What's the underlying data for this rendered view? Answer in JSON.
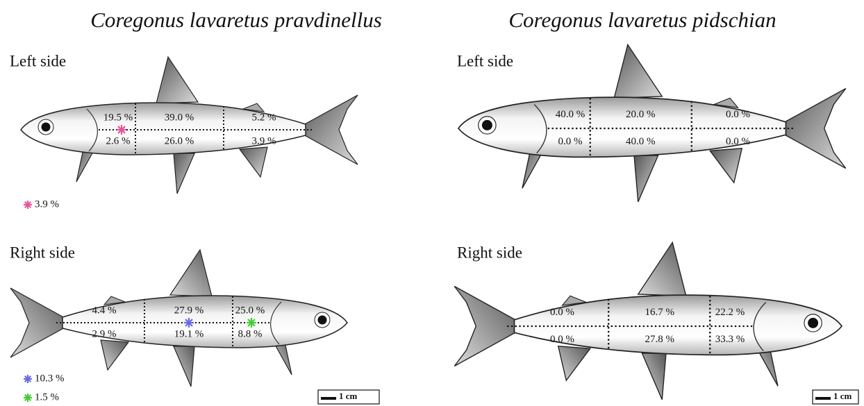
{
  "panels": [
    {
      "species": "Coregonus lavaretus pravdinellus",
      "sides": [
        {
          "label": "Left side",
          "upper": [
            "19.5 %",
            "39.0 %",
            "5.2 %"
          ],
          "lower": [
            "2.6 %",
            "26.0 %",
            "3.9 %"
          ],
          "markers": [
            {
              "color": "#e8559a",
              "label": "3.9 %"
            }
          ]
        },
        {
          "label": "Right side",
          "upper": [
            "4.4 %",
            "27.9 %",
            "25.0 %"
          ],
          "lower": [
            "2.9 %",
            "19.1 %",
            "8.8 %"
          ],
          "markers": [
            {
              "color": "#6a6ae8",
              "label": "10.3 %"
            },
            {
              "color": "#44cc33",
              "label": "1.5 %"
            }
          ]
        }
      ],
      "scale": "1 cm"
    },
    {
      "species": "Coregonus lavaretus pidschian",
      "sides": [
        {
          "label": "Left side",
          "upper": [
            "40.0 %",
            "20.0 %",
            "0.0 %"
          ],
          "lower": [
            "0.0 %",
            "40.0 %",
            "0.0 %"
          ],
          "markers": []
        },
        {
          "label": "Right side",
          "upper": [
            "0.0 %",
            "16.7 %",
            "22.2 %"
          ],
          "lower": [
            "0.0 %",
            "27.8 %",
            "33.3 %"
          ],
          "markers": []
        }
      ],
      "scale": "1 cm"
    }
  ]
}
